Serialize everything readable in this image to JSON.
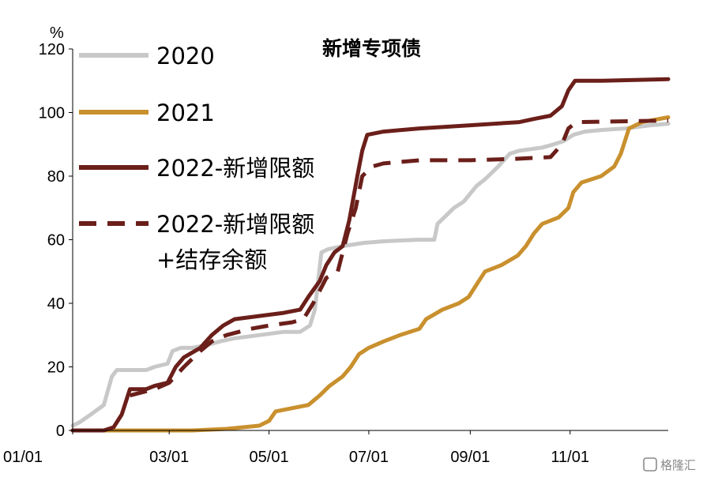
{
  "watermark": "格隆汇",
  "chart_data": {
    "type": "line",
    "title": "新增专项债",
    "ylabel": "%",
    "xlabel": "",
    "ylim": [
      0,
      120
    ],
    "yticks": [
      0,
      20,
      40,
      60,
      80,
      100,
      120
    ],
    "xlim": [
      "01/01",
      "12/31"
    ],
    "xtick_labels": [
      "01/01",
      "03/01",
      "05/01",
      "07/01",
      "09/01",
      "11/01"
    ],
    "xtick_values": [
      "01/01",
      "03/01",
      "05/01",
      "07/01",
      "09/01",
      "11/01"
    ],
    "grid": false,
    "legend_position": "top-left",
    "series": [
      {
        "name": "2020",
        "color": "#c8c8c8",
        "dash": "solid",
        "points": [
          [
            "01/01",
            1.5
          ],
          [
            "01/05",
            2.5
          ],
          [
            "01/12",
            5
          ],
          [
            "01/20",
            8
          ],
          [
            "01/25",
            17
          ],
          [
            "01/28",
            19
          ],
          [
            "02/15",
            19
          ],
          [
            "02/20",
            20
          ],
          [
            "02/28",
            21
          ],
          [
            "03/03",
            25
          ],
          [
            "03/08",
            26
          ],
          [
            "03/15",
            26
          ],
          [
            "03/25",
            27
          ],
          [
            "04/01",
            28
          ],
          [
            "04/10",
            29
          ],
          [
            "04/25",
            30
          ],
          [
            "05/10",
            31
          ],
          [
            "05/20",
            31
          ],
          [
            "05/26",
            33
          ],
          [
            "05/29",
            38
          ],
          [
            "06/02",
            56
          ],
          [
            "06/06",
            57
          ],
          [
            "06/15",
            58
          ],
          [
            "06/28",
            59
          ],
          [
            "07/10",
            59.5
          ],
          [
            "07/31",
            60
          ],
          [
            "08/10",
            60
          ],
          [
            "08/12",
            65
          ],
          [
            "08/18",
            68
          ],
          [
            "08/22",
            70
          ],
          [
            "08/28",
            72
          ],
          [
            "09/05",
            77
          ],
          [
            "09/10",
            79
          ],
          [
            "09/18",
            83
          ],
          [
            "09/25",
            87
          ],
          [
            "10/01",
            88
          ],
          [
            "10/15",
            89
          ],
          [
            "10/22",
            90
          ],
          [
            "10/28",
            91
          ],
          [
            "11/03",
            93
          ],
          [
            "11/10",
            94
          ],
          [
            "11/20",
            94.5
          ],
          [
            "12/05",
            95
          ],
          [
            "12/20",
            96
          ],
          [
            "12/31",
            96.5
          ]
        ]
      },
      {
        "name": "2021",
        "color": "#c9902e",
        "dash": "solid",
        "points": [
          [
            "01/01",
            0
          ],
          [
            "03/15",
            0
          ],
          [
            "04/05",
            0.5
          ],
          [
            "04/25",
            1.5
          ],
          [
            "05/01",
            3
          ],
          [
            "05/05",
            6
          ],
          [
            "05/15",
            7
          ],
          [
            "05/25",
            8
          ],
          [
            "06/01",
            11
          ],
          [
            "06/07",
            14
          ],
          [
            "06/15",
            17
          ],
          [
            "06/20",
            20
          ],
          [
            "06/25",
            24
          ],
          [
            "07/01",
            26
          ],
          [
            "07/10",
            28
          ],
          [
            "07/20",
            30
          ],
          [
            "08/01",
            32
          ],
          [
            "08/05",
            35
          ],
          [
            "08/15",
            38
          ],
          [
            "08/25",
            40
          ],
          [
            "08/31",
            42
          ],
          [
            "09/05",
            46
          ],
          [
            "09/10",
            50
          ],
          [
            "09/20",
            52
          ],
          [
            "09/30",
            55
          ],
          [
            "10/05",
            58
          ],
          [
            "10/10",
            62
          ],
          [
            "10/15",
            65
          ],
          [
            "10/25",
            67
          ],
          [
            "10/31",
            70
          ],
          [
            "11/03",
            75
          ],
          [
            "11/08",
            78
          ],
          [
            "11/20",
            80
          ],
          [
            "11/28",
            83
          ],
          [
            "12/02",
            87
          ],
          [
            "12/07",
            95
          ],
          [
            "12/15",
            97
          ],
          [
            "12/31",
            98.5
          ]
        ]
      },
      {
        "name": "2022-新增限额",
        "color": "#6b1f1a",
        "dash": "solid",
        "points": [
          [
            "01/01",
            0
          ],
          [
            "01/20",
            0
          ],
          [
            "01/26",
            1
          ],
          [
            "01/31",
            5
          ],
          [
            "02/05",
            13
          ],
          [
            "02/15",
            13
          ],
          [
            "02/20",
            14
          ],
          [
            "02/28",
            15
          ],
          [
            "03/05",
            20
          ],
          [
            "03/10",
            23
          ],
          [
            "03/20",
            26
          ],
          [
            "03/27",
            30
          ],
          [
            "04/03",
            33
          ],
          [
            "04/10",
            35
          ],
          [
            "04/25",
            36
          ],
          [
            "05/10",
            37
          ],
          [
            "05/20",
            38
          ],
          [
            "05/25",
            42
          ],
          [
            "06/01",
            47
          ],
          [
            "06/05",
            52
          ],
          [
            "06/10",
            56
          ],
          [
            "06/15",
            58
          ],
          [
            "06/19",
            66
          ],
          [
            "06/24",
            80
          ],
          [
            "06/27",
            88
          ],
          [
            "06/30",
            93
          ],
          [
            "07/10",
            94
          ],
          [
            "08/01",
            95
          ],
          [
            "09/01",
            96
          ],
          [
            "10/01",
            97
          ],
          [
            "10/10",
            98
          ],
          [
            "10/20",
            99
          ],
          [
            "10/27",
            102
          ],
          [
            "10/31",
            107
          ],
          [
            "11/04",
            110
          ],
          [
            "11/20",
            110
          ],
          [
            "12/31",
            110.5
          ]
        ]
      },
      {
        "name": "2022-新增限额\n+结存余额",
        "color": "#6b1f1a",
        "dash": "dashed",
        "points": [
          [
            "02/05",
            11
          ],
          [
            "02/20",
            13
          ],
          [
            "03/01",
            15
          ],
          [
            "03/10",
            20
          ],
          [
            "03/20",
            25
          ],
          [
            "03/27",
            28
          ],
          [
            "04/05",
            30
          ],
          [
            "04/20",
            32
          ],
          [
            "05/01",
            33
          ],
          [
            "05/15",
            34
          ],
          [
            "05/22",
            35
          ],
          [
            "05/28",
            40
          ],
          [
            "06/01",
            44
          ],
          [
            "06/05",
            48
          ],
          [
            "06/12",
            50
          ],
          [
            "06/18",
            62
          ],
          [
            "06/23",
            70
          ],
          [
            "06/27",
            80
          ],
          [
            "07/03",
            83
          ],
          [
            "07/10",
            84
          ],
          [
            "08/01",
            85
          ],
          [
            "09/01",
            85
          ],
          [
            "10/01",
            85.5
          ],
          [
            "10/20",
            86
          ],
          [
            "10/27",
            90
          ],
          [
            "10/31",
            95
          ],
          [
            "11/05",
            97
          ],
          [
            "12/31",
            97.5
          ]
        ]
      }
    ]
  }
}
